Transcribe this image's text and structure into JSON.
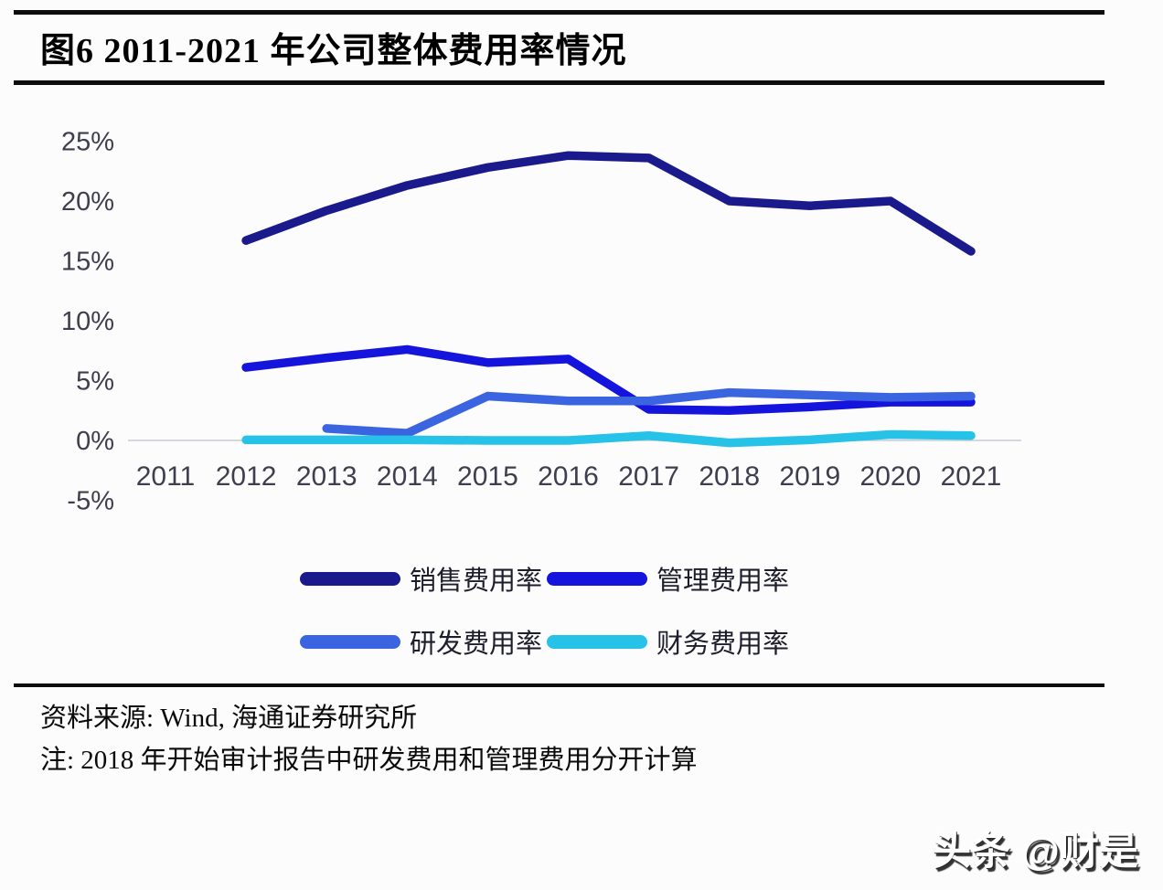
{
  "header": {
    "title": "图6  2011-2021 年公司整体费用率情况"
  },
  "chart_data": {
    "type": "line",
    "title": "2011-2021 年公司整体费用率情况",
    "x_labels": [
      "2011",
      "2012",
      "2013",
      "2014",
      "2015",
      "2016",
      "2017",
      "2018",
      "2019",
      "2020",
      "2021"
    ],
    "y_ticks": [
      {
        "label": "25%",
        "value": 25
      },
      {
        "label": "20%",
        "value": 20
      },
      {
        "label": "15%",
        "value": 15
      },
      {
        "label": "10%",
        "value": 10
      },
      {
        "label": "5%",
        "value": 5
      },
      {
        "label": "0%",
        "value": 0
      },
      {
        "label": "-5%",
        "value": -5
      }
    ],
    "ylim": [
      -5,
      25
    ],
    "grid": "zero-baseline-only",
    "legend_position": "bottom",
    "axis_color": "#c7cbd1",
    "tick_label_color": "#3e3e4e",
    "series": [
      {
        "id": "sales",
        "name": "销售费用率",
        "color": "#1a1a8c",
        "values": [
          null,
          16.7,
          19.2,
          21.3,
          22.8,
          23.8,
          23.6,
          20.0,
          19.6,
          20.0,
          15.8
        ]
      },
      {
        "id": "management",
        "name": "管理费用率",
        "color": "#1414dc",
        "values": [
          null,
          6.1,
          6.9,
          7.6,
          6.5,
          6.8,
          2.6,
          2.5,
          2.8,
          3.2,
          3.2
        ]
      },
      {
        "id": "rd",
        "name": "研发费用率",
        "color": "#3b64e0",
        "values": [
          null,
          null,
          1.0,
          0.6,
          3.7,
          3.3,
          3.3,
          4.0,
          3.8,
          3.6,
          3.7
        ]
      },
      {
        "id": "finance",
        "name": "财务费用率",
        "color": "#26c2e8",
        "values": [
          null,
          0.05,
          0.05,
          0.05,
          0.0,
          0.0,
          0.4,
          -0.2,
          0.05,
          0.5,
          0.4
        ]
      }
    ]
  },
  "footer": {
    "source": "资料来源: Wind, 海通证券研究所",
    "note": "注: 2018 年开始审计报告中研发费用和管理费用分开计算"
  },
  "watermark": {
    "text": "头条 @财是"
  }
}
